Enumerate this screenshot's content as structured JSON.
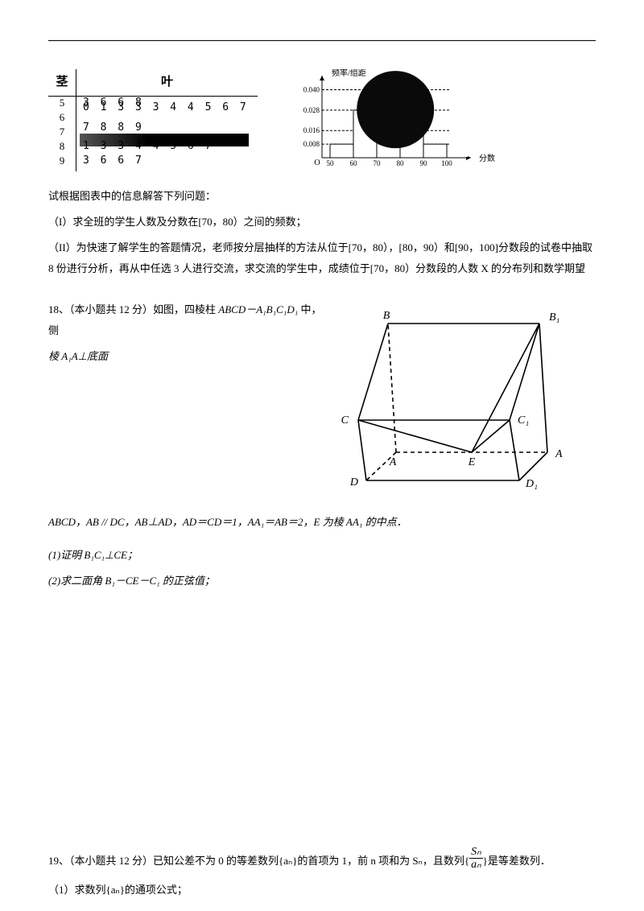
{
  "stemleaf": {
    "stem_header": "茎",
    "leaf_header": "叶",
    "rows": [
      {
        "stem": "5",
        "leaf": "3 6 6 8"
      },
      {
        "stem": "6",
        "leaf": "0 1 3 3 3 4 4 5 6 7 7 8 8 9"
      },
      {
        "stem": "7",
        "leaf": "",
        "redacted": true
      },
      {
        "stem": "8",
        "leaf": "1 3 3 4 4 5 6 7"
      },
      {
        "stem": "9",
        "leaf": "3 6 6 7"
      }
    ]
  },
  "histogram": {
    "y_axis_label": "频率/组距",
    "x_axis_label": "分数",
    "y_ticks": [
      "0.040",
      "0.028",
      "0.016",
      "0.008"
    ],
    "x_ticks": [
      "50",
      "60",
      "70",
      "80",
      "90",
      "100"
    ],
    "bars": [
      {
        "start": 50,
        "end": 60,
        "height": 0.008
      },
      {
        "start": 60,
        "end": 70,
        "height": 0.028
      },
      {
        "start": 80,
        "end": 90,
        "height": 0.016
      },
      {
        "start": 90,
        "end": 100,
        "height": 0.008
      }
    ],
    "colors": {
      "axes": "#000000",
      "bar_fill": "#ffffff",
      "bar_stroke": "#000000",
      "smudge": "#0a0a0a"
    },
    "y_max": 0.045
  },
  "intro_line": "试根据图表中的信息解答下列问题：",
  "q17_part1": "（I）求全班的学生人数及分数在[70，80）之间的频数；",
  "q17_part2": "（II）为快速了解学生的答题情况，老师按分层抽样的方法从位于[70，80），[80，90）和[90，100]分数段的试卷中抽取 8 份进行分析，再从中任选 3 人进行交流，求交流的学生中，成绩位于[70，80）分数段的人数 X 的分布列和数学期望",
  "q18": {
    "line1_prefix": "18、（本小题共 12 分）如图，四棱柱 ",
    "prism": "ABCD－A₁B₁C₁D₁",
    "line1_suffix": " 中，侧",
    "line2": "棱 A₁A⊥底面",
    "figure": {
      "labels": {
        "B": "B",
        "B1": "B₁",
        "C": "C",
        "C1": "C₁",
        "A": "A",
        "A1": "A₁",
        "D": "D",
        "D1": "D₁",
        "E": "E"
      }
    },
    "cond": "ABCD，AB // DC，AB⊥AD，AD＝CD＝1，AA₁＝AB＝2，E 为棱 AA₁ 的中点．",
    "part1": "(1)证明 B₁C₁⊥CE；",
    "part2": "(2)求二面角 B₁－CE－C₁ 的正弦值；"
  },
  "q19": {
    "frac_num": "Sₙ",
    "frac_den": "aₙ",
    "text_a": "19、（本小题共 12 分）已知公差不为 0 的等差数列{aₙ}的首项为 1，前 n 项和为 Sₙ，且数列{",
    "text_b": "}是等差数列．",
    "part1": "（1）求数列{aₙ}的通项公式；"
  }
}
